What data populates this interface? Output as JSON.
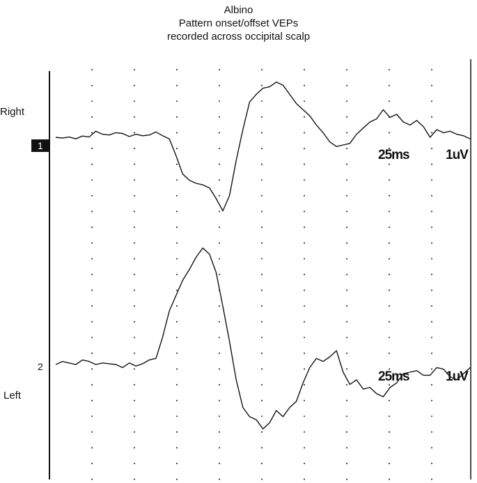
{
  "title_lines": [
    "Albino",
    "Pattern onset/offset VEPs",
    "recorded across occipital scalp"
  ],
  "chart_data": {
    "type": "line",
    "title": "Albino Pattern onset/offset VEPs recorded across occipital scalp",
    "x_unit": "ms",
    "y_unit": "uV",
    "grid": "dotted vertical lines",
    "series": [
      {
        "name": "Right",
        "channel": "1",
        "scale": {
          "time": "25ms",
          "amplitude": "1uV"
        },
        "points": [
          [
            0,
            0.0
          ],
          [
            5,
            -0.05
          ],
          [
            10,
            0.02
          ],
          [
            15,
            -0.1
          ],
          [
            20,
            0.08
          ],
          [
            25,
            0.02
          ],
          [
            30,
            0.4
          ],
          [
            35,
            0.2
          ],
          [
            40,
            0.15
          ],
          [
            45,
            0.3
          ],
          [
            50,
            0.25
          ],
          [
            55,
            0.05
          ],
          [
            60,
            0.2
          ],
          [
            65,
            0.1
          ],
          [
            70,
            0.15
          ],
          [
            75,
            0.35
          ],
          [
            80,
            0.1
          ],
          [
            85,
            -0.1
          ],
          [
            90,
            -1.2
          ],
          [
            95,
            -2.4
          ],
          [
            100,
            -2.8
          ],
          [
            105,
            -3.0
          ],
          [
            110,
            -3.1
          ],
          [
            115,
            -3.3
          ],
          [
            120,
            -4.0
          ],
          [
            125,
            -4.8
          ],
          [
            130,
            -3.8
          ],
          [
            135,
            -1.5
          ],
          [
            140,
            0.5
          ],
          [
            145,
            2.3
          ],
          [
            150,
            2.8
          ],
          [
            155,
            3.2
          ],
          [
            160,
            3.3
          ],
          [
            165,
            3.6
          ],
          [
            170,
            3.4
          ],
          [
            175,
            2.8
          ],
          [
            180,
            2.2
          ],
          [
            185,
            1.8
          ],
          [
            190,
            1.4
          ],
          [
            195,
            0.8
          ],
          [
            200,
            0.3
          ],
          [
            205,
            -0.3
          ],
          [
            210,
            -0.6
          ],
          [
            215,
            -0.5
          ],
          [
            220,
            -0.4
          ],
          [
            225,
            0.2
          ],
          [
            230,
            0.6
          ],
          [
            235,
            1.0
          ],
          [
            240,
            1.2
          ],
          [
            245,
            1.8
          ],
          [
            250,
            1.3
          ],
          [
            255,
            1.5
          ],
          [
            260,
            1.0
          ],
          [
            265,
            0.8
          ],
          [
            270,
            1.1
          ],
          [
            275,
            0.7
          ],
          [
            280,
            0.0
          ],
          [
            285,
            0.5
          ],
          [
            290,
            0.3
          ],
          [
            295,
            0.4
          ],
          [
            300,
            0.2
          ],
          [
            305,
            0.1
          ],
          [
            310,
            -0.1
          ]
        ]
      },
      {
        "name": "Left",
        "channel": "2",
        "scale": {
          "time": "25ms",
          "amplitude": "1uV"
        },
        "points": [
          [
            0,
            0.0
          ],
          [
            5,
            0.2
          ],
          [
            10,
            0.1
          ],
          [
            15,
            0.0
          ],
          [
            20,
            0.3
          ],
          [
            25,
            0.2
          ],
          [
            30,
            0.0
          ],
          [
            35,
            0.1
          ],
          [
            40,
            0.05
          ],
          [
            45,
            0.0
          ],
          [
            50,
            -0.2
          ],
          [
            55,
            0.1
          ],
          [
            60,
            -0.1
          ],
          [
            65,
            0.05
          ],
          [
            70,
            0.3
          ],
          [
            75,
            0.4
          ],
          [
            80,
            1.8
          ],
          [
            85,
            3.5
          ],
          [
            90,
            4.5
          ],
          [
            95,
            5.5
          ],
          [
            100,
            6.2
          ],
          [
            105,
            7.0
          ],
          [
            110,
            7.6
          ],
          [
            115,
            7.2
          ],
          [
            120,
            6.0
          ],
          [
            125,
            3.8
          ],
          [
            130,
            1.5
          ],
          [
            135,
            -1.0
          ],
          [
            140,
            -2.8
          ],
          [
            145,
            -3.4
          ],
          [
            150,
            -3.6
          ],
          [
            155,
            -4.2
          ],
          [
            160,
            -3.8
          ],
          [
            165,
            -3.0
          ],
          [
            170,
            -3.4
          ],
          [
            175,
            -2.8
          ],
          [
            180,
            -2.4
          ],
          [
            185,
            -1.2
          ],
          [
            190,
            -0.2
          ],
          [
            195,
            0.4
          ],
          [
            200,
            0.2
          ],
          [
            205,
            0.5
          ],
          [
            210,
            0.9
          ],
          [
            215,
            -0.5
          ],
          [
            220,
            -1.3
          ],
          [
            225,
            -1.0
          ],
          [
            230,
            -1.6
          ],
          [
            235,
            -1.5
          ],
          [
            240,
            -1.9
          ],
          [
            245,
            -2.1
          ],
          [
            250,
            -1.5
          ],
          [
            255,
            -1.2
          ],
          [
            260,
            -0.6
          ],
          [
            265,
            -0.5
          ],
          [
            270,
            -0.4
          ],
          [
            275,
            -0.7
          ],
          [
            280,
            -0.7
          ],
          [
            285,
            -0.2
          ],
          [
            290,
            -0.3
          ],
          [
            295,
            -0.8
          ],
          [
            300,
            -1.0
          ],
          [
            305,
            -0.6
          ],
          [
            310,
            -0.2
          ]
        ]
      }
    ]
  }
}
